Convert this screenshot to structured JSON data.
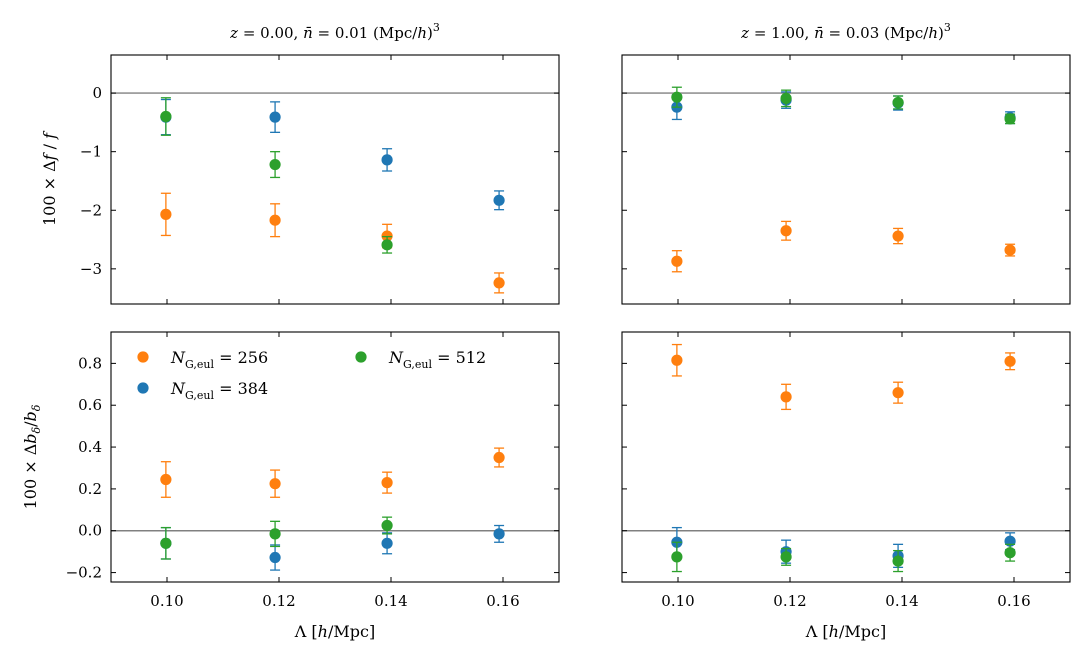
{
  "chart_data": {
    "type": "scatter",
    "xlabel": "Λ [h/Mpc]",
    "x_ticks": [
      "0.10",
      "0.12",
      "0.14",
      "0.16"
    ],
    "x_tick_values": [
      0.1,
      0.12,
      0.14,
      0.16
    ],
    "xlim": [
      0.09,
      0.17
    ],
    "colors": {
      "N256": "#ff7f0e",
      "N384": "#1f77b4",
      "N512": "#2ca02c",
      "ref_line": "#808080"
    },
    "legend": [
      {
        "key": "N256",
        "label": "N_G,eul = 256"
      },
      {
        "key": "N512",
        "label": "N_G,eul = 512"
      },
      {
        "key": "N384",
        "label": "N_G,eul = 384"
      }
    ],
    "rows": [
      {
        "ylabel": "100 × Δf / f"
      },
      {
        "ylabel": "100 × Δb_δ / b_δ"
      }
    ],
    "columns": [
      {
        "title": "z = 0.00, n̄ = 0.01 (Mpc/h)^3"
      },
      {
        "title": "z = 1.00, n̄ = 0.03 (Mpc/h)^3"
      }
    ],
    "panels": [
      {
        "id": "f-z0",
        "ylim": [
          -3.6,
          0.65
        ],
        "y_ticks": [
          "0",
          "−1",
          "−2",
          "−3"
        ],
        "y_tick_values": [
          0,
          -1,
          -2,
          -3
        ],
        "show_y_labels": true,
        "show_x_labels": false,
        "series": [
          {
            "key": "N256",
            "x": [
              0.0998,
              0.1193,
              0.1393,
              0.1593
            ],
            "y": [
              -2.07,
              -2.17,
              -2.44,
              -3.24
            ],
            "err": [
              0.36,
              0.28,
              0.2,
              0.17
            ]
          },
          {
            "key": "N384",
            "x": [
              0.0998,
              0.1193,
              0.1393,
              0.1593
            ],
            "y": [
              -0.41,
              -0.41,
              -1.14,
              -1.83
            ],
            "err": [
              0.3,
              0.26,
              0.19,
              0.16
            ]
          },
          {
            "key": "N512",
            "x": [
              0.0998,
              0.1193,
              0.1393
            ],
            "y": [
              -0.4,
              -1.22,
              -2.59
            ],
            "err": [
              0.32,
              0.22,
              0.14
            ]
          }
        ]
      },
      {
        "id": "f-z1",
        "ylim": [
          -3.6,
          0.65
        ],
        "y_ticks": [
          "0",
          "−1",
          "−2",
          "−3"
        ],
        "y_tick_values": [
          0,
          -1,
          -2,
          -3
        ],
        "show_y_labels": false,
        "show_x_labels": false,
        "series": [
          {
            "key": "N256",
            "x": [
              0.0998,
              0.1193,
              0.1393,
              0.1593
            ],
            "y": [
              -2.87,
              -2.35,
              -2.44,
              -2.68
            ],
            "err": [
              0.18,
              0.16,
              0.13,
              0.1
            ]
          },
          {
            "key": "N384",
            "x": [
              0.0998,
              0.1193,
              0.1393,
              0.1593
            ],
            "y": [
              -0.24,
              -0.12,
              -0.17,
              -0.42
            ],
            "err": [
              0.21,
              0.14,
              0.12,
              0.1
            ]
          },
          {
            "key": "N512",
            "x": [
              0.0998,
              0.1193,
              0.1393,
              0.1593
            ],
            "y": [
              -0.07,
              -0.09,
              -0.16,
              -0.44
            ],
            "err": [
              0.17,
              0.14,
              0.11,
              0.08
            ]
          }
        ]
      },
      {
        "id": "b-z0",
        "ylim": [
          -0.245,
          0.95
        ],
        "y_ticks": [
          "−0.2",
          "0.0",
          "0.2",
          "0.4",
          "0.6",
          "0.8"
        ],
        "y_tick_values": [
          -0.2,
          0.0,
          0.2,
          0.4,
          0.6,
          0.8
        ],
        "show_y_labels": true,
        "show_x_labels": true,
        "legend": true,
        "series": [
          {
            "key": "N256",
            "x": [
              0.0998,
              0.1193,
              0.1393,
              0.1593
            ],
            "y": [
              0.245,
              0.225,
              0.23,
              0.35
            ],
            "err": [
              0.085,
              0.065,
              0.05,
              0.045
            ]
          },
          {
            "key": "N384",
            "x": [
              0.0998,
              0.1193,
              0.1393,
              0.1593
            ],
            "y": [
              -0.06,
              -0.128,
              -0.06,
              -0.015
            ],
            "err": [
              0.075,
              0.06,
              0.05,
              0.04
            ]
          },
          {
            "key": "N512",
            "x": [
              0.0998,
              0.1193,
              0.1393
            ],
            "y": [
              -0.06,
              -0.015,
              0.025
            ],
            "err": [
              0.075,
              0.06,
              0.04
            ]
          }
        ]
      },
      {
        "id": "b-z1",
        "ylim": [
          -0.245,
          0.95
        ],
        "y_ticks": [
          "−0.2",
          "0.0",
          "0.2",
          "0.4",
          "0.6",
          "0.8"
        ],
        "y_tick_values": [
          -0.2,
          0.0,
          0.2,
          0.4,
          0.6,
          0.8
        ],
        "show_y_labels": false,
        "show_x_labels": true,
        "series": [
          {
            "key": "N256",
            "x": [
              0.0998,
              0.1193,
              0.1393,
              0.1593
            ],
            "y": [
              0.815,
              0.64,
              0.66,
              0.81
            ],
            "err": [
              0.075,
              0.06,
              0.05,
              0.04
            ]
          },
          {
            "key": "N384",
            "x": [
              0.0998,
              0.1193,
              0.1393,
              0.1593
            ],
            "y": [
              -0.055,
              -0.1,
              -0.12,
              -0.05
            ],
            "err": [
              0.07,
              0.055,
              0.055,
              0.04
            ]
          },
          {
            "key": "N512",
            "x": [
              0.0998,
              0.1193,
              0.1393,
              0.1593
            ],
            "y": [
              -0.125,
              -0.125,
              -0.145,
              -0.105
            ],
            "err": [
              0.07,
              0.04,
              0.05,
              0.04
            ]
          }
        ]
      }
    ]
  }
}
